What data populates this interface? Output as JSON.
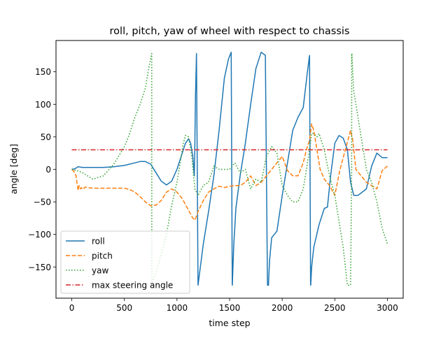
{
  "chart_data": {
    "type": "line",
    "title": "roll, pitch, yaw of wheel with respect to chassis",
    "xlabel": "time step",
    "ylabel": "angle [deg]",
    "xlim": [
      -150,
      3150
    ],
    "ylim": [
      -198,
      198
    ],
    "xticks": [
      0,
      500,
      1000,
      1500,
      2000,
      2500,
      3000
    ],
    "yticks": [
      -150,
      -100,
      -50,
      0,
      50,
      100,
      150
    ],
    "xtick_labels": [
      "0",
      "500",
      "1000",
      "1500",
      "2000",
      "2500",
      "3000"
    ],
    "ytick_labels": [
      "−150",
      "−100",
      "−50",
      "0",
      "50",
      "100",
      "150"
    ],
    "grid": false,
    "legend_position": "lower-left",
    "series": [
      {
        "name": "roll",
        "color": "#1f77b4",
        "style": "solid",
        "x": [
          0,
          30,
          60,
          100,
          200,
          300,
          400,
          500,
          600,
          650,
          700,
          750,
          800,
          850,
          900,
          950,
          1000,
          1050,
          1080,
          1110,
          1130,
          1150,
          1165,
          1170,
          1175,
          1185,
          1200,
          1250,
          1300,
          1350,
          1400,
          1450,
          1490,
          1515,
          1525,
          1526,
          1540,
          1560,
          1600,
          1650,
          1700,
          1750,
          1800,
          1840,
          1860,
          1870,
          1871,
          1880,
          1900,
          1950,
          2000,
          2050,
          2100,
          2150,
          2200,
          2240,
          2260,
          2270,
          2271,
          2280,
          2300,
          2350,
          2400,
          2430,
          2460,
          2500,
          2540,
          2580,
          2620,
          2650,
          2680,
          2720,
          2760,
          2800,
          2850,
          2900,
          2950,
          3000
        ],
        "y": [
          0,
          1,
          4,
          3,
          3,
          3,
          4,
          6,
          10,
          12,
          12,
          8,
          -5,
          -18,
          -24,
          -18,
          0,
          25,
          40,
          47,
          40,
          20,
          -10,
          40,
          110,
          178,
          -178,
          -115,
          -65,
          -10,
          60,
          140,
          170,
          180,
          -178,
          -178,
          -115,
          -60,
          -10,
          40,
          100,
          155,
          180,
          175,
          -178,
          -178,
          -170,
          -140,
          -105,
          -95,
          -40,
          10,
          60,
          80,
          95,
          150,
          175,
          -178,
          -178,
          -150,
          -120,
          -85,
          -60,
          -58,
          -10,
          40,
          52,
          48,
          30,
          -20,
          -40,
          -40,
          -35,
          -30,
          5,
          25,
          18,
          18
        ]
      },
      {
        "name": "pitch",
        "color": "#ff7f0e",
        "style": "dashed",
        "x": [
          0,
          20,
          40,
          50,
          60,
          70,
          80,
          90,
          100,
          110,
          120,
          130,
          150,
          200,
          300,
          400,
          500,
          550,
          600,
          650,
          700,
          750,
          800,
          850,
          900,
          950,
          1000,
          1050,
          1100,
          1150,
          1170,
          1200,
          1250,
          1300,
          1350,
          1400,
          1450,
          1500,
          1550,
          1600,
          1650,
          1700,
          1750,
          1800,
          1850,
          1900,
          1950,
          2000,
          2050,
          2100,
          2150,
          2200,
          2230,
          2260,
          2280,
          2300,
          2330,
          2360,
          2400,
          2450,
          2500,
          2550,
          2600,
          2650,
          2670,
          2700,
          2750,
          2800,
          2850,
          2900,
          2950,
          3000
        ],
        "y": [
          0,
          -3,
          -10,
          -22,
          -32,
          -25,
          -30,
          -28,
          -30,
          -28,
          -29,
          -27,
          -28,
          -29,
          -29,
          -29,
          -29,
          -31,
          -35,
          -42,
          -50,
          -56,
          -55,
          -48,
          -35,
          -30,
          -35,
          -45,
          -60,
          -75,
          -78,
          -65,
          -48,
          -35,
          -30,
          -26,
          -28,
          -26,
          -25,
          -25,
          -20,
          -10,
          -25,
          -20,
          -10,
          0,
          10,
          20,
          -2,
          -10,
          -10,
          10,
          30,
          45,
          70,
          60,
          30,
          0,
          -15,
          -25,
          -40,
          0,
          30,
          60,
          45,
          0,
          -10,
          -20,
          -25,
          -30,
          -2,
          5
        ]
      },
      {
        "name": "yaw",
        "color": "#2ca02c",
        "style": "dotted",
        "x": [
          0,
          50,
          100,
          150,
          200,
          300,
          400,
          500,
          550,
          600,
          650,
          700,
          730,
          750,
          760,
          761,
          770,
          800,
          850,
          900,
          950,
          1000,
          1040,
          1060,
          1080,
          1110,
          1140,
          1170,
          1200,
          1250,
          1300,
          1350,
          1400,
          1450,
          1500,
          1550,
          1600,
          1650,
          1700,
          1750,
          1800,
          1850,
          1900,
          1950,
          2000,
          2050,
          2100,
          2150,
          2200,
          2250,
          2280,
          2300,
          2330,
          2350,
          2400,
          2450,
          2500,
          2550,
          2580,
          2620,
          2650,
          2660,
          2661,
          2662,
          2663,
          2670,
          2680,
          2700,
          2750,
          2800,
          2850,
          2900,
          2950,
          3000
        ],
        "y": [
          0,
          -2,
          -5,
          -10,
          -15,
          -10,
          8,
          35,
          55,
          80,
          100,
          125,
          155,
          170,
          178,
          -178,
          -170,
          -160,
          -130,
          -100,
          -55,
          -20,
          20,
          40,
          52,
          50,
          20,
          -30,
          -40,
          -25,
          -20,
          5,
          0,
          0,
          0,
          10,
          -5,
          0,
          -30,
          -15,
          -20,
          20,
          35,
          25,
          -25,
          -40,
          -50,
          -50,
          -30,
          20,
          55,
          55,
          50,
          55,
          30,
          -10,
          -40,
          -90,
          -120,
          -178,
          -178,
          0,
          178,
          178,
          170,
          150,
          120,
          100,
          50,
          0,
          -20,
          -50,
          -90,
          -115
        ]
      },
      {
        "name": "max steering angle",
        "color": "#d62728",
        "style": "dashdot",
        "x": [
          0,
          3000
        ],
        "y": [
          30,
          30
        ]
      }
    ]
  }
}
